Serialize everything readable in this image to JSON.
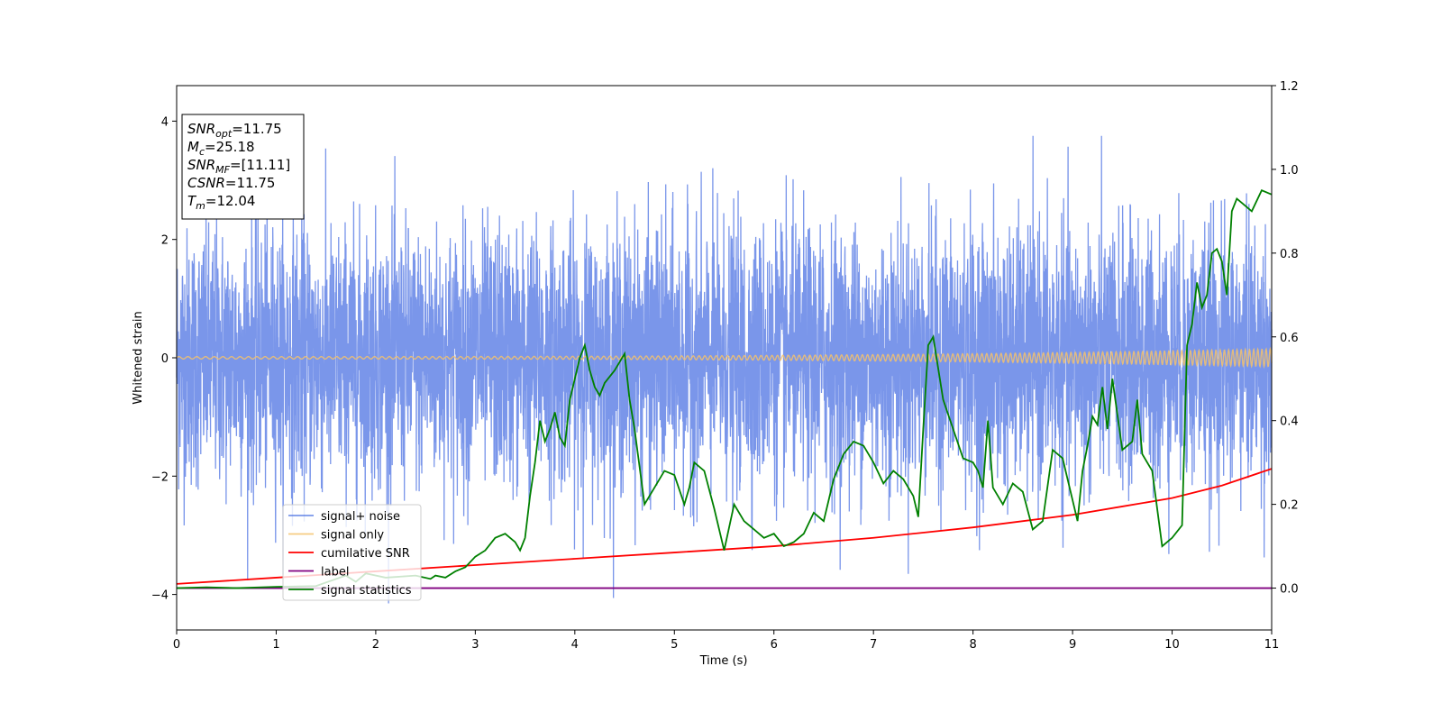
{
  "chart_data": {
    "type": "line",
    "xlabel": "Time (s)",
    "ylabel": "Whitened strain",
    "xlim": [
      0,
      11
    ],
    "ylim": [
      -4.6,
      4.6
    ],
    "y2lim": [
      -0.1,
      1.2
    ],
    "xticks": [
      "0",
      "1",
      "2",
      "3",
      "4",
      "5",
      "6",
      "7",
      "8",
      "9",
      "10",
      "11"
    ],
    "yticks": [
      "−4",
      "−2",
      "0",
      "2",
      "4"
    ],
    "y2ticks": [
      "0.0",
      "0.2",
      "0.4",
      "0.6",
      "0.8",
      "1.0",
      "1.2"
    ],
    "grid": false,
    "legend_placement": "lower-left",
    "annotation": {
      "lines": [
        {
          "base": "SNR",
          "sub": "opt",
          "value": "=11.75"
        },
        {
          "base": "M",
          "sub": "c",
          "value": "=25.18"
        },
        {
          "base": "SNR",
          "sub": "MF",
          "value": "=[11.11]"
        },
        {
          "base": "CSNR",
          "sub": "",
          "value": "=11.75"
        },
        {
          "base": "T",
          "sub": "m",
          "value": "=12.04"
        }
      ]
    },
    "series": [
      {
        "name": "signal+ noise",
        "axis": "left",
        "color": "#4169e1",
        "description": "whitened noise, approx. unit variance, range about -4.2 to 3.8"
      },
      {
        "name": "signal only",
        "axis": "left",
        "color": "#f5c26b",
        "amplitude_start": 0.02,
        "amplitude_end": 0.15
      },
      {
        "name": "cumilative SNR",
        "axis": "right",
        "color": "#ff0000",
        "x": [
          0,
          1,
          2,
          3,
          4,
          5,
          6,
          7,
          8,
          9,
          9.5,
          10,
          10.5,
          11
        ],
        "y": [
          0.01,
          0.025,
          0.04,
          0.055,
          0.07,
          0.085,
          0.1,
          0.12,
          0.145,
          0.175,
          0.195,
          0.215,
          0.245,
          0.285
        ]
      },
      {
        "name": "label",
        "axis": "right",
        "color": "#800080",
        "x": [
          0,
          11
        ],
        "y": [
          0.0,
          0.0
        ]
      },
      {
        "name": "signal statistics",
        "axis": "right",
        "color": "#008000",
        "x": [
          0,
          0.3,
          0.6,
          1.0,
          1.4,
          1.7,
          1.8,
          1.9,
          2.1,
          2.4,
          2.55,
          2.6,
          2.7,
          2.8,
          2.9,
          3.0,
          3.1,
          3.2,
          3.3,
          3.4,
          3.45,
          3.5,
          3.55,
          3.6,
          3.65,
          3.7,
          3.75,
          3.8,
          3.85,
          3.9,
          3.95,
          4.0,
          4.05,
          4.1,
          4.15,
          4.2,
          4.25,
          4.3,
          4.4,
          4.5,
          4.55,
          4.6,
          4.7,
          4.8,
          4.9,
          5.0,
          5.1,
          5.15,
          5.2,
          5.3,
          5.4,
          5.5,
          5.6,
          5.7,
          5.8,
          5.9,
          6.0,
          6.1,
          6.2,
          6.3,
          6.4,
          6.5,
          6.6,
          6.7,
          6.8,
          6.9,
          7.0,
          7.1,
          7.2,
          7.3,
          7.4,
          7.45,
          7.5,
          7.55,
          7.6,
          7.7,
          7.8,
          7.9,
          8.0,
          8.05,
          8.1,
          8.15,
          8.2,
          8.3,
          8.4,
          8.5,
          8.6,
          8.7,
          8.8,
          8.9,
          9.0,
          9.05,
          9.1,
          9.15,
          9.2,
          9.25,
          9.3,
          9.35,
          9.4,
          9.5,
          9.6,
          9.65,
          9.7,
          9.8,
          9.9,
          10.0,
          10.1,
          10.15,
          10.2,
          10.25,
          10.3,
          10.35,
          10.4,
          10.45,
          10.5,
          10.55,
          10.6,
          10.65,
          10.7,
          10.8,
          10.9,
          11.0
        ],
        "y": [
          0.0,
          0.002,
          0.0,
          0.003,
          0.005,
          0.03,
          0.015,
          0.035,
          0.025,
          0.03,
          0.022,
          0.03,
          0.025,
          0.04,
          0.05,
          0.075,
          0.09,
          0.12,
          0.13,
          0.11,
          0.09,
          0.12,
          0.22,
          0.3,
          0.4,
          0.35,
          0.38,
          0.42,
          0.36,
          0.34,
          0.45,
          0.5,
          0.55,
          0.58,
          0.52,
          0.48,
          0.46,
          0.49,
          0.52,
          0.56,
          0.45,
          0.38,
          0.2,
          0.24,
          0.28,
          0.27,
          0.2,
          0.24,
          0.3,
          0.28,
          0.19,
          0.09,
          0.2,
          0.16,
          0.14,
          0.12,
          0.13,
          0.1,
          0.11,
          0.13,
          0.18,
          0.16,
          0.26,
          0.32,
          0.35,
          0.34,
          0.3,
          0.25,
          0.28,
          0.26,
          0.22,
          0.17,
          0.38,
          0.58,
          0.6,
          0.45,
          0.38,
          0.31,
          0.3,
          0.28,
          0.24,
          0.4,
          0.24,
          0.2,
          0.25,
          0.23,
          0.14,
          0.16,
          0.33,
          0.31,
          0.21,
          0.16,
          0.28,
          0.34,
          0.41,
          0.39,
          0.48,
          0.38,
          0.5,
          0.33,
          0.35,
          0.45,
          0.32,
          0.28,
          0.1,
          0.12,
          0.15,
          0.58,
          0.63,
          0.73,
          0.67,
          0.7,
          0.8,
          0.81,
          0.78,
          0.7,
          0.9,
          0.93,
          0.92,
          0.9,
          0.95,
          0.94
        ]
      }
    ]
  }
}
